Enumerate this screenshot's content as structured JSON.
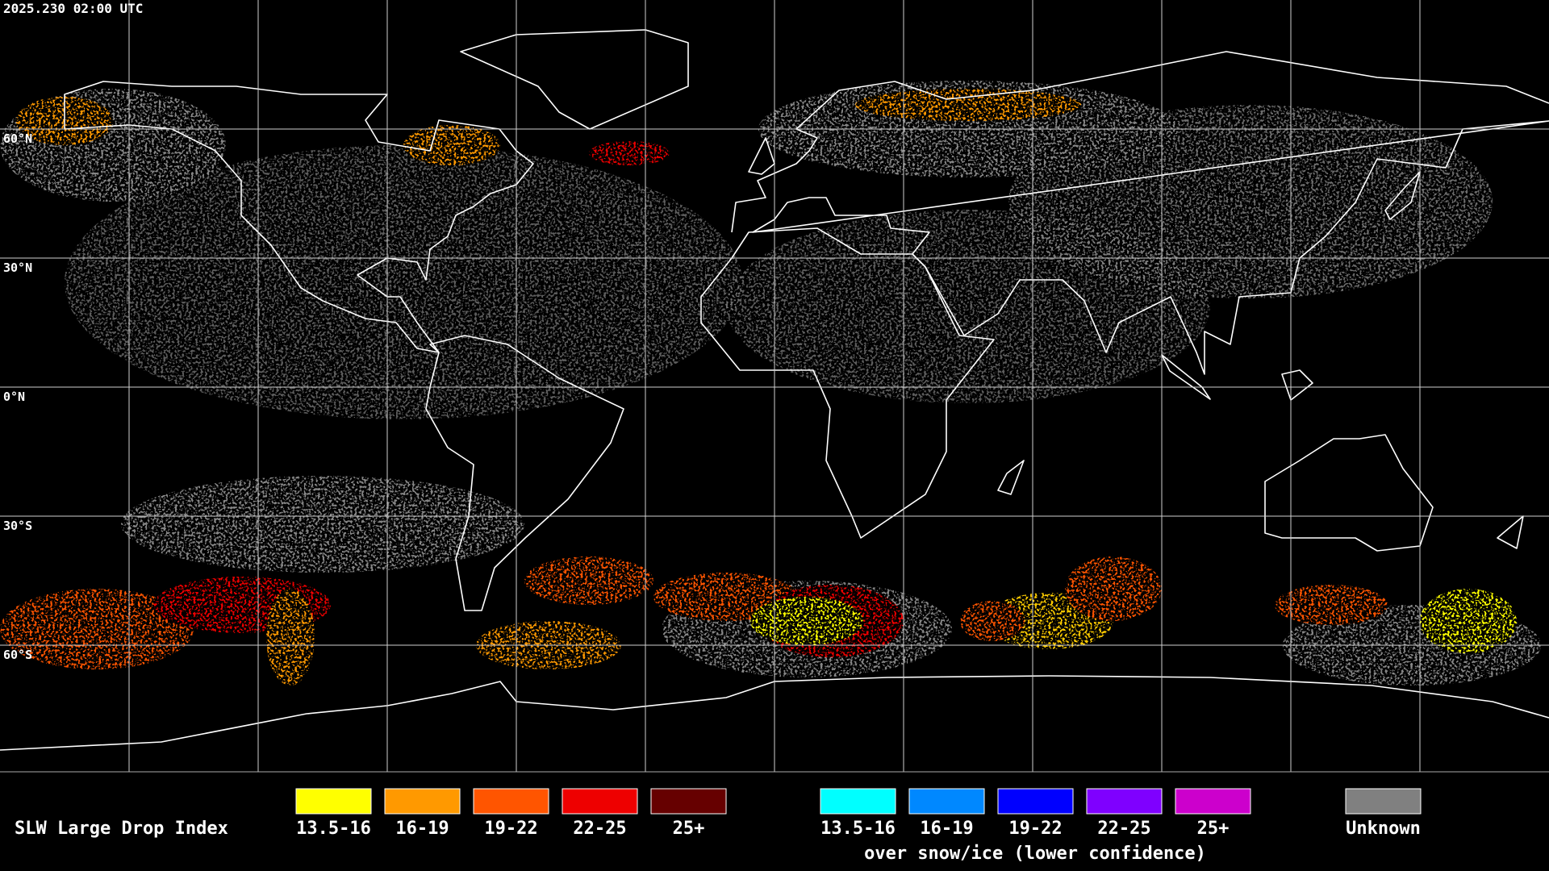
{
  "timestamp": "2025.230 02:00 UTC",
  "latitude_labels": [
    "60°N",
    "30°N",
    "0°N",
    "30°S",
    "60°S"
  ],
  "legend": {
    "title": "SLW Large Drop Index",
    "categories": [
      {
        "label": "13.5-16",
        "color": "#ffff00"
      },
      {
        "label": "16-19",
        "color": "#ff9900"
      },
      {
        "label": "19-22",
        "color": "#ff5500"
      },
      {
        "label": "22-25",
        "color": "#ee0000"
      },
      {
        "label": "25+",
        "color": "#660000"
      }
    ],
    "snow_ice_categories": [
      {
        "label": "13.5-16",
        "color": "#00ffff"
      },
      {
        "label": "16-19",
        "color": "#0088ff"
      },
      {
        "label": "19-22",
        "color": "#0000ff"
      },
      {
        "label": "22-25",
        "color": "#7f00ff"
      },
      {
        "label": "25+",
        "color": "#cc00cc"
      }
    ],
    "snow_ice_caption": "over snow/ice (lower confidence)",
    "unknown": {
      "label": "Unknown",
      "color": "#808080"
    }
  }
}
